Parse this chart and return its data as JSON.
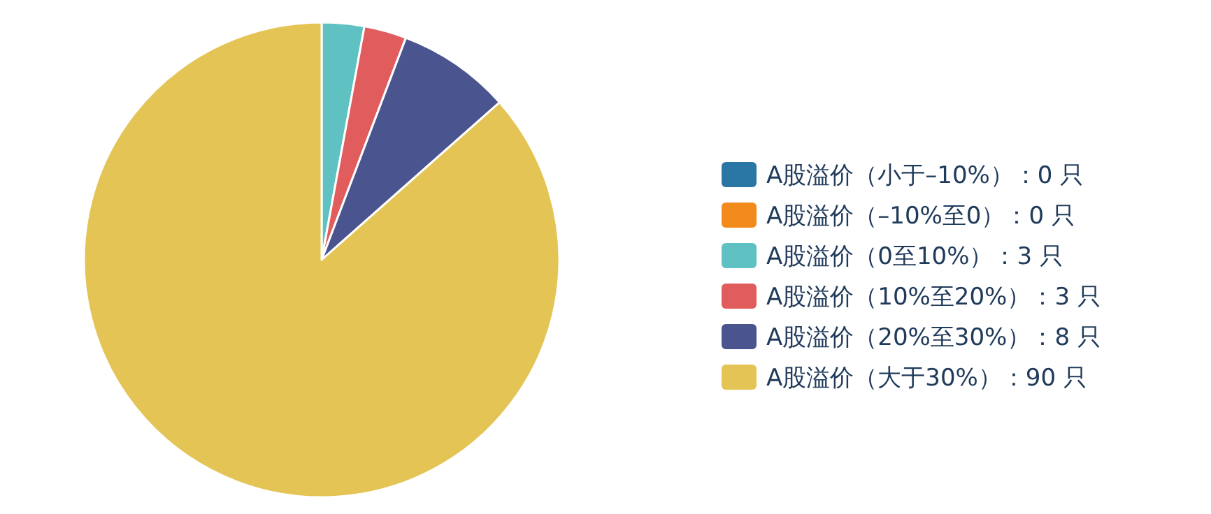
{
  "chart_data": {
    "type": "pie",
    "categories": [
      "A股溢价（小于–10%）",
      "A股溢价（–10%至0）",
      "A股溢价（0至10%）",
      "A股溢价（10%至20%）",
      "A股溢价（20%至30%）",
      "A股溢价（大于30%）"
    ],
    "values": [
      0,
      0,
      3,
      3,
      8,
      90
    ],
    "value_labels": [
      "：0 只",
      "：0 只",
      "：3 只",
      "：3 只",
      "：8 只",
      "：90 只"
    ],
    "colors": [
      "#2a76a4",
      "#f28a1c",
      "#5fc1c1",
      "#e05c5d",
      "#4a548e",
      "#e3c455"
    ],
    "legend": "right"
  }
}
